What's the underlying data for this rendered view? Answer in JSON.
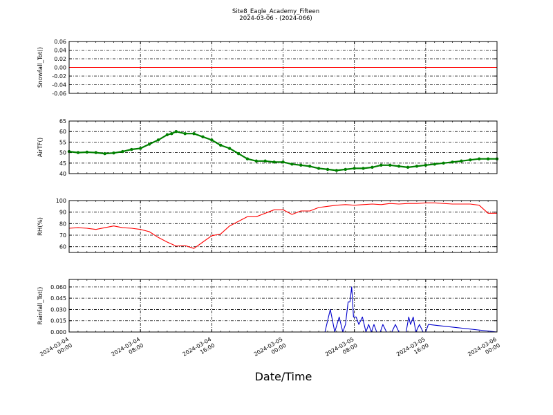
{
  "figure": {
    "title_line1": "Site8_Eagle_Academy_Fifteen",
    "title_line2": "2024-03-06 - (2024-066)",
    "xlabel": "Date/Time",
    "x_ticks": [
      {
        "x": 0,
        "line1": "2024-03-04",
        "line2": "00:00"
      },
      {
        "x": 8,
        "line1": "2024-03-04",
        "line2": "08:00"
      },
      {
        "x": 16,
        "line1": "2024-03-04",
        "line2": "16:00"
      },
      {
        "x": 24,
        "line1": "2024-03-05",
        "line2": "00:00"
      },
      {
        "x": 32,
        "line1": "2024-03-05",
        "line2": "08:00"
      },
      {
        "x": 40,
        "line1": "2024-03-05",
        "line2": "16:00"
      },
      {
        "x": 48,
        "line1": "2024-03-06",
        "line2": "00:00"
      }
    ]
  },
  "chart_data": [
    {
      "type": "line",
      "ylabel": "Snowfall_Tot()",
      "color": "#ff0000",
      "ylim": [
        -0.06,
        0.06
      ],
      "yticks": [
        "0.06",
        "0.04",
        "0.02",
        "0.00",
        "-0.02",
        "-0.04",
        "-0.06"
      ],
      "ytick_values": [
        0.06,
        0.04,
        0.02,
        0.0,
        -0.02,
        -0.04,
        -0.06
      ],
      "grid": true,
      "x": [
        0,
        48
      ],
      "y": [
        0,
        0
      ]
    },
    {
      "type": "line",
      "ylabel": "AirTF()",
      "color": "#008000",
      "markers": true,
      "ylim": [
        40,
        65
      ],
      "yticks": [
        "65",
        "60",
        "55",
        "50",
        "45",
        "40"
      ],
      "ytick_values": [
        65,
        60,
        55,
        50,
        45,
        40
      ],
      "grid": true,
      "x": [
        0,
        1,
        2,
        3,
        4,
        5,
        6,
        7,
        8,
        9,
        10,
        11,
        11.5,
        12,
        13,
        14,
        15,
        16,
        17,
        18,
        19,
        20,
        21,
        22,
        23,
        24,
        25,
        26,
        27,
        28,
        29,
        30,
        31,
        32,
        33,
        34,
        35,
        36,
        37,
        38,
        39,
        40,
        41,
        42,
        43,
        44,
        45,
        46,
        47,
        48
      ],
      "y": [
        50.5,
        50,
        50.2,
        50,
        49.5,
        49.8,
        50.5,
        51.5,
        52,
        54,
        56,
        58.5,
        59,
        60,
        59,
        59,
        57.5,
        56,
        53.5,
        52,
        49.5,
        47,
        46,
        46,
        45.5,
        45.5,
        44.5,
        44,
        43.5,
        42.5,
        42,
        41.5,
        42,
        42.5,
        42.5,
        43,
        44,
        44,
        43.5,
        43,
        43.5,
        44,
        44.5,
        45,
        45.5,
        46,
        46.5,
        47,
        47,
        47
      ]
    },
    {
      "type": "line",
      "ylabel": "RH(%)",
      "color": "#ff0000",
      "ylim": [
        55,
        100
      ],
      "yticks": [
        "100",
        "90",
        "80",
        "70",
        "60"
      ],
      "ytick_values": [
        100,
        90,
        80,
        70,
        60
      ],
      "grid": true,
      "x": [
        0,
        1,
        2,
        3,
        4,
        5,
        6,
        7,
        8,
        9,
        10,
        11,
        12,
        13,
        14,
        15,
        16,
        17,
        18,
        19,
        20,
        21,
        22,
        23,
        24,
        25,
        26,
        27,
        28,
        29,
        30,
        31,
        32,
        33,
        34,
        35,
        36,
        37,
        38,
        39,
        40,
        41,
        42,
        43,
        44,
        45,
        46,
        47,
        48
      ],
      "y": [
        76,
        76.5,
        76,
        75,
        76.5,
        78,
        76.5,
        76,
        75,
        73,
        68,
        64,
        60.5,
        61,
        58.5,
        64,
        69.5,
        71,
        78,
        82,
        86,
        86,
        89,
        92,
        92,
        88,
        91,
        91,
        94,
        95,
        96,
        96.5,
        96,
        96.5,
        97,
        96.5,
        97.5,
        97,
        97.5,
        97.5,
        98,
        98,
        97.5,
        97,
        97,
        97,
        96,
        89,
        89
      ]
    },
    {
      "type": "line",
      "ylabel": "Rainfall_Tot()",
      "color": "#0000cc",
      "ylim": [
        0,
        0.07
      ],
      "yticks": [
        "0.060",
        "0.045",
        "0.030",
        "0.015",
        "0.000"
      ],
      "ytick_values": [
        0.06,
        0.045,
        0.03,
        0.015,
        0.0
      ],
      "grid": true,
      "x": [
        0,
        28,
        28.7,
        29.3,
        29.8,
        30.3,
        30.7,
        31.0,
        31.3,
        31.5,
        31.7,
        31.9,
        32.2,
        32.5,
        32.9,
        33.3,
        33.6,
        33.9,
        34.2,
        34.5,
        34.9,
        35.2,
        35.6,
        35.9,
        36.2,
        36.6,
        37.0,
        37.3,
        37.5,
        37.8,
        38.1,
        38.3,
        38.6,
        38.9,
        39.3,
        39.7,
        40.0,
        40.3,
        48
      ],
      "y": [
        0,
        0,
        0,
        0.03,
        0,
        0.02,
        0,
        0.01,
        0.04,
        0.04,
        0.06,
        0.02,
        0.02,
        0.01,
        0.02,
        0,
        0.01,
        0,
        0.01,
        0,
        0,
        0.01,
        0,
        0,
        0,
        0.01,
        0,
        0,
        0,
        0,
        0.02,
        0.01,
        0.02,
        0,
        0.01,
        0,
        0,
        0.01,
        0
      ]
    }
  ]
}
